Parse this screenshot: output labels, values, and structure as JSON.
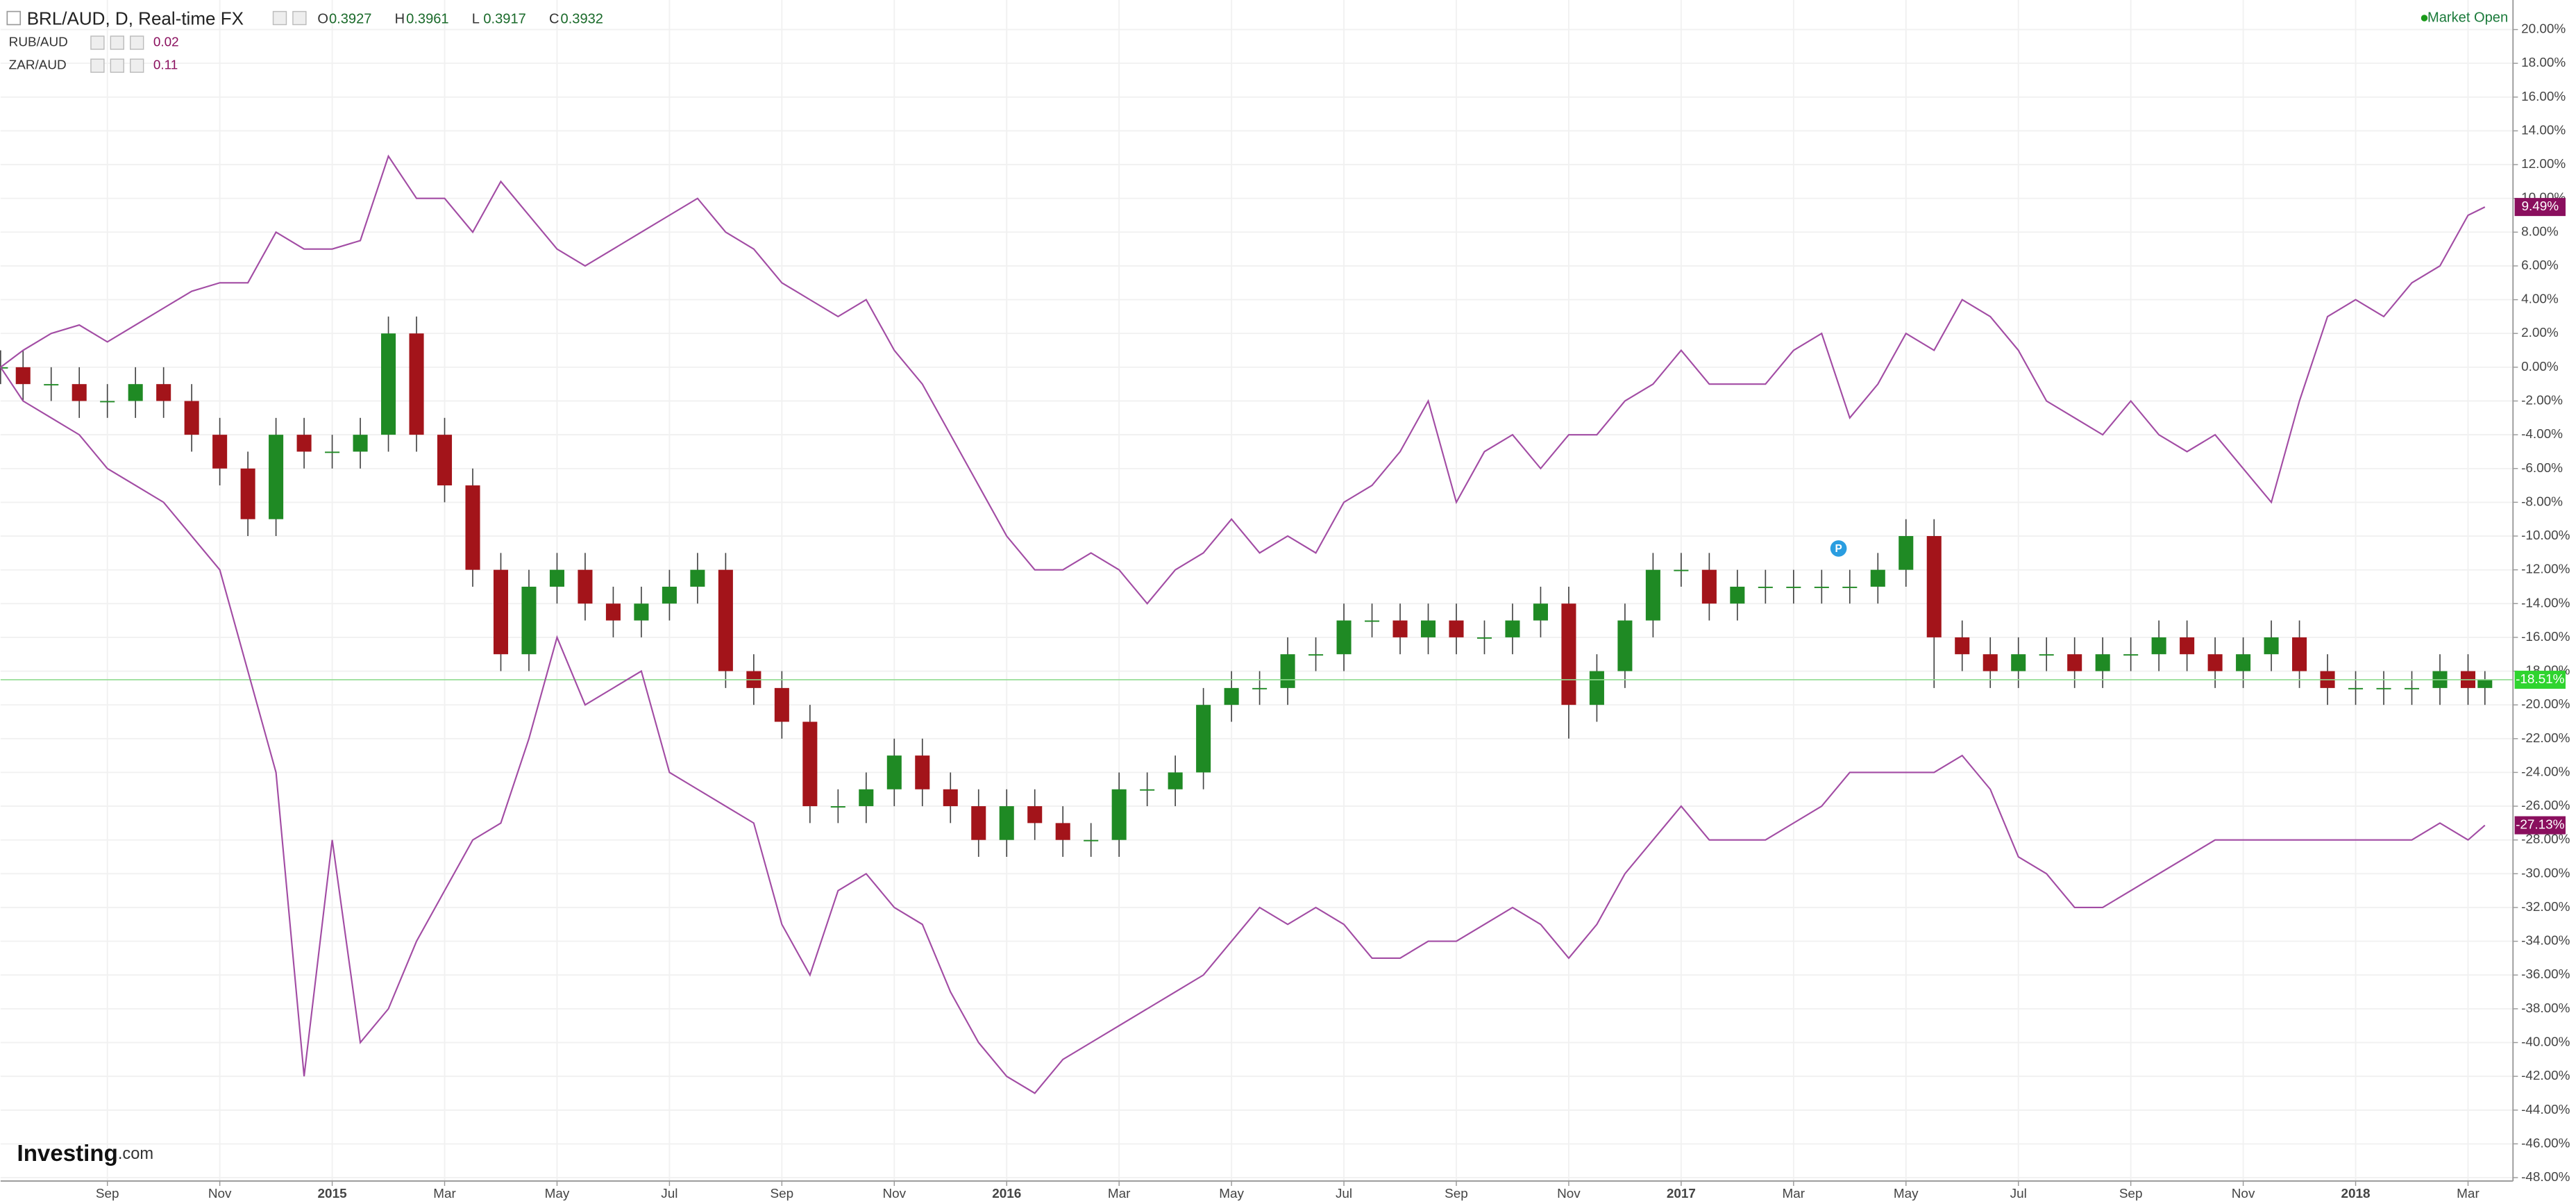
{
  "chart_data": {
    "type": "candlestick",
    "title": "BRL/AUD, D, Real-time FX",
    "ohlc": [
      {
        "label": "O",
        "value": 0.3927
      },
      {
        "label": "H",
        "value": 0.3961
      },
      {
        "label": "L",
        "value": 0.3917
      },
      {
        "label": "C",
        "value": 0.3932
      }
    ],
    "status": "Market Open",
    "logo": {
      "name": "Investing",
      "suffix": ".com"
    },
    "events": [
      {
        "label": "P",
        "x": 31.8
      }
    ],
    "x": [
      -0.9,
      -0.5,
      0,
      0.5,
      1,
      1.5,
      2,
      2.5,
      3,
      3.5,
      4,
      4.5,
      5,
      5.5,
      6,
      6.5,
      7,
      7.5,
      8,
      8.5,
      9,
      9.5,
      10,
      10.5,
      11,
      11.5,
      12,
      12.5,
      13,
      13.5,
      14,
      14.5,
      15,
      15.5,
      16,
      16.5,
      17,
      17.5,
      18,
      18.5,
      19,
      19.5,
      20,
      20.5,
      21,
      21.5,
      22,
      22.5,
      23,
      23.5,
      24,
      24.5,
      25,
      25.5,
      26,
      26.5,
      27,
      27.5,
      28,
      28.5,
      29,
      29.5,
      30,
      30.5,
      31,
      31.5,
      32,
      32.5,
      33,
      33.5,
      34,
      34.5,
      35,
      35.5,
      36,
      36.5,
      37,
      37.5,
      38,
      38.5,
      39,
      39.5,
      40,
      40.5,
      41,
      41.5,
      42,
      42.5,
      43,
      43.3
    ],
    "xlim": [
      -0.9,
      43.8
    ],
    "xticks": [
      {
        "value": 1,
        "label": "Sep"
      },
      {
        "value": 3,
        "label": "Nov"
      },
      {
        "value": 5,
        "label": "2015"
      },
      {
        "value": 7,
        "label": "Mar"
      },
      {
        "value": 9,
        "label": "May"
      },
      {
        "value": 11,
        "label": "Jul"
      },
      {
        "value": 13,
        "label": "Sep"
      },
      {
        "value": 15,
        "label": "Nov"
      },
      {
        "value": 17,
        "label": "2016"
      },
      {
        "value": 19,
        "label": "Mar"
      },
      {
        "value": 21,
        "label": "May"
      },
      {
        "value": 23,
        "label": "Jul"
      },
      {
        "value": 25,
        "label": "Sep"
      },
      {
        "value": 27,
        "label": "Nov"
      },
      {
        "value": 29,
        "label": "2017"
      },
      {
        "value": 31,
        "label": "Mar"
      },
      {
        "value": 33,
        "label": "May"
      },
      {
        "value": 35,
        "label": "Jul"
      },
      {
        "value": 37,
        "label": "Sep"
      },
      {
        "value": 39,
        "label": "Nov"
      },
      {
        "value": 41,
        "label": "2018"
      },
      {
        "value": 43,
        "label": "Mar"
      }
    ],
    "ylim": [
      -48.2,
      21.75
    ],
    "yticks": [
      {
        "value": 20,
        "label": "20.00%"
      },
      {
        "value": 18,
        "label": "18.00%"
      },
      {
        "value": 16,
        "label": "16.00%"
      },
      {
        "value": 14,
        "label": "14.00%"
      },
      {
        "value": 12,
        "label": "12.00%"
      },
      {
        "value": 10,
        "label": "10.00%"
      },
      {
        "value": 8,
        "label": "8.00%"
      },
      {
        "value": 6,
        "label": "6.00%"
      },
      {
        "value": 4,
        "label": "4.00%"
      },
      {
        "value": 2,
        "label": "2.00%"
      },
      {
        "value": 0,
        "label": "0.00%"
      },
      {
        "value": -2,
        "label": "-2.00%"
      },
      {
        "value": -4,
        "label": "-4.00%"
      },
      {
        "value": -6,
        "label": "-6.00%"
      },
      {
        "value": -8,
        "label": "-8.00%"
      },
      {
        "value": -10,
        "label": "-10.00%"
      },
      {
        "value": -12,
        "label": "-12.00%"
      },
      {
        "value": -14,
        "label": "-14.00%"
      },
      {
        "value": -16,
        "label": "-16.00%"
      },
      {
        "value": -18,
        "label": "-18.00%"
      },
      {
        "value": -20,
        "label": "-20.00%"
      },
      {
        "value": -22,
        "label": "-22.00%"
      },
      {
        "value": -24,
        "label": "-24.00%"
      },
      {
        "value": -26,
        "label": "-26.00%"
      },
      {
        "value": -28,
        "label": "-28.00%"
      },
      {
        "value": -30,
        "label": "-30.00%"
      },
      {
        "value": -32,
        "label": "-32.00%"
      },
      {
        "value": -34,
        "label": "-34.00%"
      },
      {
        "value": -36,
        "label": "-36.00%"
      },
      {
        "value": -38,
        "label": "-38.00%"
      },
      {
        "value": -40,
        "label": "-40.00%"
      },
      {
        "value": -42,
        "label": "-42.00%"
      },
      {
        "value": -44,
        "label": "-44.00%"
      },
      {
        "value": -46,
        "label": "-46.00%"
      },
      {
        "value": -48,
        "label": "-48.00%"
      }
    ],
    "grid": true,
    "series": [
      {
        "type": "candlestick",
        "up_color": "#1f8a24",
        "down_color": "#a3141a",
        "tag_color": "#2fd42f",
        "last_label": "-18.51%",
        "open": [
          0,
          0,
          -1,
          -1,
          -2,
          -2,
          -1,
          -2,
          -4,
          -6,
          -9,
          -4,
          -5,
          -5,
          -4,
          2,
          -4,
          -7,
          -12,
          -17,
          -13,
          -12,
          -14,
          -15,
          -14,
          -13,
          -12,
          -18,
          -19,
          -21,
          -26,
          -26,
          -25,
          -23,
          -25,
          -26,
          -28,
          -26,
          -27,
          -28,
          -28,
          -25,
          -25,
          -24,
          -20,
          -19,
          -19,
          -17,
          -17,
          -15,
          -15,
          -16,
          -15,
          -16,
          -16,
          -15,
          -14,
          -20,
          -18,
          -15,
          -12,
          -12,
          -14,
          -13,
          -13,
          -13,
          -13,
          -13,
          -12,
          -10,
          -16,
          -17,
          -18,
          -17,
          -17,
          -18,
          -17,
          -17,
          -16,
          -17,
          -18,
          -17,
          -16,
          -18,
          -19,
          -19,
          -19,
          -19,
          -18,
          -19
        ],
        "high": [
          1,
          1,
          0,
          0,
          -1,
          0,
          0,
          -1,
          -3,
          -5,
          -3,
          -3,
          -4,
          -3,
          3,
          3,
          -3,
          -6,
          -11,
          -12,
          -11,
          -11,
          -13,
          -13,
          -12,
          -11,
          -11,
          -17,
          -18,
          -20,
          -25,
          -24,
          -22,
          -22,
          -24,
          -25,
          -25,
          -25,
          -26,
          -27,
          -24,
          -24,
          -23,
          -19,
          -18,
          -18,
          -16,
          -16,
          -14,
          -14,
          -14,
          -14,
          -14,
          -15,
          -14,
          -13,
          -13,
          -17,
          -14,
          -11,
          -11,
          -11,
          -12,
          -12,
          -12,
          -12,
          -12,
          -11,
          -9,
          -9,
          -15,
          -16,
          -16,
          -16,
          -16,
          -16,
          -16,
          -15,
          -15,
          -16,
          -16,
          -15,
          -15,
          -17,
          -18,
          -18,
          -18,
          -17,
          -17,
          -18
        ],
        "low": [
          -1,
          -2,
          -2,
          -3,
          -3,
          -3,
          -3,
          -5,
          -7,
          -10,
          -10,
          -6,
          -6,
          -6,
          -5,
          -5,
          -8,
          -13,
          -18,
          -18,
          -14,
          -15,
          -16,
          -16,
          -15,
          -14,
          -19,
          -20,
          -22,
          -27,
          -27,
          -27,
          -26,
          -26,
          -27,
          -29,
          -29,
          -28,
          -29,
          -29,
          -29,
          -26,
          -26,
          -25,
          -21,
          -20,
          -20,
          -18,
          -18,
          -16,
          -17,
          -17,
          -17,
          -17,
          -17,
          -16,
          -22,
          -21,
          -19,
          -16,
          -13,
          -15,
          -15,
          -14,
          -14,
          -14,
          -14,
          -14,
          -13,
          -19,
          -18,
          -19,
          -19,
          -18,
          -19,
          -19,
          -18,
          -18,
          -18,
          -19,
          -19,
          -18,
          -19,
          -20,
          -20,
          -20,
          -20,
          -20,
          -20,
          -20
        ],
        "close": [
          0,
          -1,
          -1,
          -2,
          -2,
          -1,
          -2,
          -4,
          -6,
          -9,
          -4,
          -5,
          -5,
          -4,
          2,
          -4,
          -7,
          -12,
          -17,
          -13,
          -12,
          -14,
          -15,
          -14,
          -13,
          -12,
          -18,
          -19,
          -21,
          -26,
          -26,
          -25,
          -23,
          -25,
          -26,
          -28,
          -26,
          -27,
          -28,
          -28,
          -25,
          -25,
          -24,
          -20,
          -19,
          -19,
          -17,
          -17,
          -15,
          -15,
          -16,
          -15,
          -16,
          -16,
          -15,
          -14,
          -20,
          -18,
          -15,
          -12,
          -12,
          -14,
          -13,
          -13,
          -13,
          -13,
          -13,
          -12,
          -10,
          -16,
          -17,
          -18,
          -17,
          -17,
          -18,
          -17,
          -17,
          -16,
          -17,
          -18,
          -17,
          -16,
          -18,
          -19,
          -19,
          -19,
          -19,
          -18,
          -19,
          -18.51
        ]
      },
      {
        "type": "line",
        "name": "RUB/AUD",
        "legend_value": 0.02,
        "color": "#a24ca4",
        "tag_color": "#8a0f5e",
        "last_label": "-27.13%",
        "values": [
          0,
          -2,
          -3,
          -4,
          -6,
          -7,
          -8,
          -10,
          -12,
          -18,
          -24,
          -42,
          -28,
          -40,
          -38,
          -34,
          -31,
          -28,
          -27,
          -22,
          -16,
          -20,
          -19,
          -18,
          -24,
          -25,
          -26,
          -27,
          -33,
          -36,
          -31,
          -30,
          -32,
          -33,
          -37,
          -40,
          -42,
          -43,
          -41,
          -40,
          -39,
          -38,
          -37,
          -36,
          -34,
          -32,
          -33,
          -32,
          -33,
          -35,
          -35,
          -34,
          -34,
          -33,
          -32,
          -33,
          -35,
          -33,
          -30,
          -28,
          -26,
          -28,
          -28,
          -28,
          -27,
          -26,
          -24,
          -24,
          -24,
          -24,
          -23,
          -25,
          -29,
          -30,
          -32,
          -32,
          -31,
          -30,
          -29,
          -28,
          -28,
          -28,
          -28,
          -28,
          -28,
          -28,
          -28,
          -27,
          -28,
          -27.13
        ]
      },
      {
        "type": "line",
        "name": "ZAR/AUD",
        "legend_value": 0.11,
        "color": "#a24ca4",
        "tag_color": "#8a0f5e",
        "last_label": "9.49%",
        "values": [
          0,
          1,
          2,
          2.5,
          1.5,
          2.5,
          3.5,
          4.5,
          5,
          5,
          8,
          7,
          7,
          7.5,
          12.5,
          10,
          10,
          8,
          11,
          9,
          7,
          6,
          7,
          8,
          9,
          10,
          8,
          7,
          5,
          4,
          3,
          4,
          1,
          -1,
          -4,
          -7,
          -10,
          -12,
          -12,
          -11,
          -12,
          -14,
          -12,
          -11,
          -9,
          -11,
          -10,
          -11,
          -8,
          -7,
          -5,
          -2,
          -8,
          -5,
          -4,
          -6,
          -4,
          -4,
          -2,
          -1,
          1,
          -1,
          -1,
          -1,
          1,
          2,
          -3,
          -1,
          2,
          1,
          4,
          3,
          1,
          -2,
          -3,
          -4,
          -2,
          -4,
          -5,
          -4,
          -6,
          -8,
          -2,
          3,
          4,
          3,
          5,
          6,
          9,
          9.49
        ]
      }
    ]
  }
}
